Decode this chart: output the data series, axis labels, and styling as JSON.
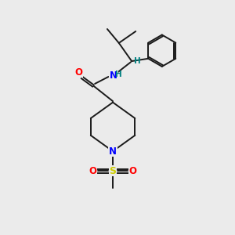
{
  "bg_color": "#ebebeb",
  "bond_color": "#1a1a1a",
  "N_color": "#0000ff",
  "O_color": "#ff0000",
  "S_color": "#cccc00",
  "NH_color": "#008080",
  "figsize": [
    3.0,
    3.0
  ],
  "dpi": 100,
  "xlim": [
    0,
    10
  ],
  "ylim": [
    0,
    10
  ],
  "lw": 1.4,
  "fs": 8.5
}
